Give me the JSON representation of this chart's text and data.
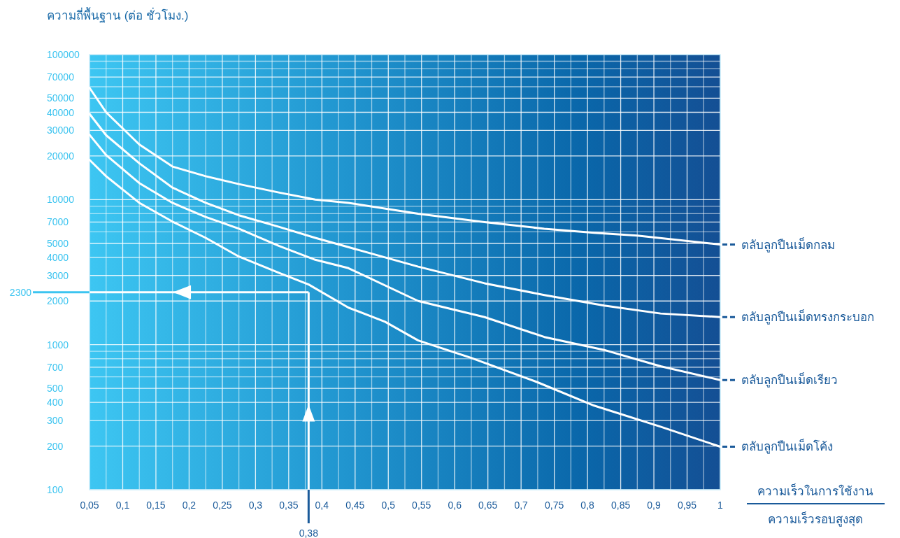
{
  "chart_data": {
    "type": "line",
    "ylabel": "ความถี่พื้นฐาน (ต่อ ชั่วโมง.)",
    "xlabel": "ความเร็วในการใช้งาน\nความเร็วรอบสูงสุด",
    "log": "y",
    "grid": true,
    "xlim": [
      0.05,
      1.0
    ],
    "ylim": [
      100,
      100000
    ],
    "xticks": [
      {
        "value": 0.05,
        "label": "0,05"
      },
      {
        "value": 0.075,
        "label": null
      },
      {
        "value": 0.1,
        "label": "0,1"
      },
      {
        "value": 0.125,
        "label": null
      },
      {
        "value": 0.15,
        "label": "0,15"
      },
      {
        "value": 0.175,
        "label": null
      },
      {
        "value": 0.2,
        "label": "0,2"
      },
      {
        "value": 0.225,
        "label": null
      },
      {
        "value": 0.25,
        "label": "0,25"
      },
      {
        "value": 0.275,
        "label": null
      },
      {
        "value": 0.3,
        "label": "0,3"
      },
      {
        "value": 0.325,
        "label": null
      },
      {
        "value": 0.35,
        "label": "0,35"
      },
      {
        "value": 0.375,
        "label": null
      },
      {
        "value": 0.4,
        "label": "0,4"
      },
      {
        "value": 0.425,
        "label": null
      },
      {
        "value": 0.45,
        "label": "0,45"
      },
      {
        "value": 0.475,
        "label": null
      },
      {
        "value": 0.5,
        "label": "0,5"
      },
      {
        "value": 0.525,
        "label": null
      },
      {
        "value": 0.55,
        "label": "0,55"
      },
      {
        "value": 0.575,
        "label": null
      },
      {
        "value": 0.6,
        "label": "0,6"
      },
      {
        "value": 0.625,
        "label": null
      },
      {
        "value": 0.65,
        "label": "0,65"
      },
      {
        "value": 0.675,
        "label": null
      },
      {
        "value": 0.7,
        "label": "0,7"
      },
      {
        "value": 0.725,
        "label": null
      },
      {
        "value": 0.75,
        "label": "0,75"
      },
      {
        "value": 0.775,
        "label": null
      },
      {
        "value": 0.8,
        "label": "0,8"
      },
      {
        "value": 0.825,
        "label": null
      },
      {
        "value": 0.85,
        "label": "0,85"
      },
      {
        "value": 0.875,
        "label": null
      },
      {
        "value": 0.9,
        "label": "0,9"
      },
      {
        "value": 0.925,
        "label": null
      },
      {
        "value": 0.95,
        "label": "0,95"
      },
      {
        "value": 0.975,
        "label": null
      },
      1
    ],
    "yticks": [
      100,
      200,
      300,
      400,
      500,
      {
        "value": 600,
        "label": null
      },
      700,
      {
        "value": 800,
        "label": null
      },
      {
        "value": 900,
        "label": null
      },
      1000,
      2000,
      3000,
      4000,
      5000,
      {
        "value": 6000,
        "label": null
      },
      7000,
      {
        "value": 8000,
        "label": null
      },
      {
        "value": 9000,
        "label": null
      },
      10000,
      20000,
      30000,
      40000,
      50000,
      {
        "value": 60000,
        "label": null
      },
      70000,
      {
        "value": 80000,
        "label": null
      },
      {
        "value": 90000,
        "label": null
      },
      100000
    ],
    "series": [
      {
        "name": "ตลับลูกปืนเม็ดกลม",
        "color": "#ffffff",
        "x": [
          0.05,
          0.075,
          0.125,
          0.175,
          0.225,
          0.275,
          0.335,
          0.39,
          0.44,
          0.545,
          0.645,
          0.735,
          0.81,
          0.875,
          1.0
        ],
        "values": [
          59000,
          40000,
          24000,
          16900,
          14500,
          12800,
          11200,
          10000,
          9500,
          8000,
          7000,
          6300,
          5900,
          5650,
          4900
        ]
      },
      {
        "name": "ตลับลูกปืนเม็ดทรงกระบอก",
        "color": "#ffffff",
        "x": [
          0.05,
          0.075,
          0.125,
          0.175,
          0.225,
          0.275,
          0.335,
          0.39,
          0.44,
          0.545,
          0.645,
          0.735,
          0.825,
          0.91,
          1.0
        ],
        "values": [
          39000,
          27800,
          17800,
          12100,
          9500,
          7800,
          6500,
          5450,
          4700,
          3450,
          2650,
          2200,
          1860,
          1640,
          1550
        ]
      },
      {
        "name": "ตลับลูกปืนเม็ดเรียว",
        "color": "#ffffff",
        "x": [
          0.05,
          0.075,
          0.125,
          0.175,
          0.225,
          0.275,
          0.335,
          0.39,
          0.44,
          0.545,
          0.645,
          0.735,
          0.825,
          0.91,
          1.0
        ],
        "values": [
          28000,
          20300,
          13000,
          9500,
          7600,
          6300,
          4800,
          3850,
          3370,
          2000,
          1550,
          1130,
          920,
          710,
          570
        ]
      },
      {
        "name": "ตลับลูกปืนเม็ดโค้ง",
        "color": "#ffffff",
        "x": [
          0.05,
          0.075,
          0.125,
          0.175,
          0.225,
          0.275,
          0.335,
          0.38,
          0.44,
          0.495,
          0.545,
          0.625,
          0.725,
          0.81,
          0.91,
          1.0
        ],
        "values": [
          18800,
          14500,
          9500,
          7050,
          5450,
          4050,
          3130,
          2600,
          1800,
          1440,
          1070,
          810,
          550,
          380,
          272,
          198
        ]
      }
    ],
    "ref_lines": [
      {
        "axis": "y",
        "value": 2300,
        "label": "2300",
        "color": "#ffffff"
      },
      {
        "axis": "x",
        "value": 0.38,
        "label": "0,38",
        "color": "#ffffff"
      }
    ]
  }
}
